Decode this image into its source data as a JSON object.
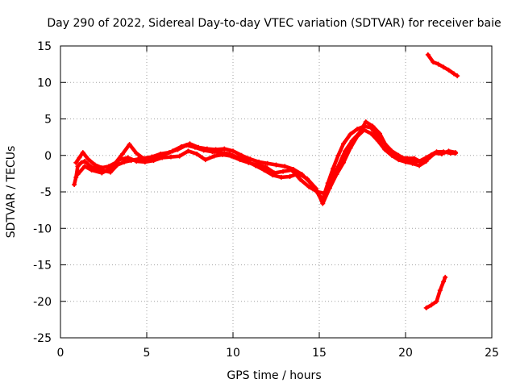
{
  "chart_data": {
    "type": "scatter",
    "title": "Day 290 of 2022, Sidereal Day-to-day VTEC variation (SDTVAR) for receiver baie",
    "xlabel": "GPS time / hours",
    "ylabel": "SDTVAR / TECUs",
    "xlim": [
      0,
      25
    ],
    "ylim": [
      -25,
      15
    ],
    "xticks": [
      0,
      5,
      10,
      15,
      20,
      25
    ],
    "yticks": [
      15,
      10,
      5,
      0,
      -5,
      -10,
      -15,
      -20,
      -25
    ],
    "grid": true,
    "legend": "none",
    "series": [
      {
        "name": "main-trace",
        "color": "#ff0000",
        "points": [
          [
            0.8,
            -4.0
          ],
          [
            0.9,
            -3.0
          ],
          [
            1.0,
            -1.5
          ],
          [
            1.2,
            -1.0
          ],
          [
            1.4,
            -0.8
          ],
          [
            1.6,
            -1.2
          ],
          [
            1.8,
            -1.6
          ],
          [
            2.1,
            -1.9
          ],
          [
            2.5,
            -2.1
          ],
          [
            2.9,
            -2.3
          ],
          [
            3.3,
            -1.3
          ],
          [
            3.7,
            -0.9
          ],
          [
            4.1,
            -0.7
          ],
          [
            4.5,
            -0.5
          ],
          [
            5.0,
            -0.6
          ],
          [
            5.5,
            -0.3
          ],
          [
            6.0,
            0.1
          ],
          [
            6.5,
            0.6
          ],
          [
            7.0,
            1.2
          ],
          [
            7.5,
            1.6
          ],
          [
            8.0,
            1.1
          ],
          [
            8.5,
            0.9
          ],
          [
            9.0,
            0.8
          ],
          [
            9.5,
            0.9
          ],
          [
            10.0,
            0.6
          ],
          [
            10.5,
            0.0
          ],
          [
            11.0,
            -0.5
          ],
          [
            11.5,
            -0.9
          ],
          [
            12.0,
            -1.1
          ],
          [
            12.5,
            -1.3
          ],
          [
            13.0,
            -1.5
          ],
          [
            13.5,
            -1.9
          ],
          [
            14.0,
            -2.6
          ],
          [
            14.5,
            -3.8
          ],
          [
            15.0,
            -5.5
          ],
          [
            15.2,
            -6.0
          ],
          [
            15.5,
            -3.8
          ],
          [
            15.8,
            -1.8
          ],
          [
            16.1,
            0.0
          ],
          [
            16.4,
            1.6
          ],
          [
            16.8,
            2.9
          ],
          [
            17.2,
            3.6
          ],
          [
            17.6,
            4.0
          ],
          [
            18.0,
            3.8
          ],
          [
            18.4,
            2.6
          ],
          [
            18.8,
            1.6
          ],
          [
            19.2,
            0.6
          ],
          [
            19.6,
            0.0
          ],
          [
            20.0,
            -0.5
          ],
          [
            20.4,
            -0.8
          ],
          [
            20.8,
            -0.8
          ],
          [
            21.2,
            -0.3
          ],
          [
            21.5,
            0.1
          ],
          [
            21.8,
            0.5
          ],
          [
            22.2,
            0.5
          ],
          [
            22.6,
            0.3
          ],
          [
            22.9,
            0.3
          ]
        ]
      },
      {
        "name": "variant-trace-a",
        "color": "#ff0000",
        "points": [
          [
            0.9,
            -1.0
          ],
          [
            1.1,
            -0.3
          ],
          [
            1.3,
            0.4
          ],
          [
            1.6,
            -0.5
          ],
          [
            2.0,
            -1.3
          ],
          [
            2.4,
            -1.7
          ],
          [
            2.8,
            -1.5
          ],
          [
            3.2,
            -1.0
          ],
          [
            3.6,
            0.2
          ],
          [
            4.0,
            1.5
          ],
          [
            4.4,
            0.3
          ],
          [
            4.8,
            -0.4
          ],
          [
            5.3,
            -0.2
          ],
          [
            5.8,
            0.2
          ],
          [
            6.3,
            0.4
          ],
          [
            6.8,
            0.8
          ],
          [
            7.3,
            1.4
          ],
          [
            7.8,
            1.1
          ],
          [
            8.3,
            0.7
          ],
          [
            8.8,
            0.5
          ],
          [
            9.3,
            0.4
          ],
          [
            9.8,
            0.2
          ],
          [
            10.3,
            -0.3
          ],
          [
            10.8,
            -0.8
          ],
          [
            11.3,
            -1.4
          ],
          [
            11.8,
            -2.0
          ],
          [
            12.3,
            -2.7
          ],
          [
            12.8,
            -3.0
          ],
          [
            13.3,
            -2.9
          ],
          [
            13.8,
            -2.5
          ],
          [
            14.3,
            -3.2
          ],
          [
            14.8,
            -4.5
          ],
          [
            15.2,
            -6.6
          ],
          [
            15.6,
            -4.5
          ],
          [
            16.0,
            -2.6
          ],
          [
            16.4,
            -1.0
          ],
          [
            16.8,
            1.0
          ],
          [
            17.2,
            2.6
          ],
          [
            17.6,
            3.5
          ],
          [
            18.0,
            3.0
          ],
          [
            18.4,
            2.0
          ],
          [
            18.8,
            0.8
          ],
          [
            19.2,
            0.0
          ],
          [
            19.6,
            -0.6
          ],
          [
            20.0,
            -0.9
          ],
          [
            20.4,
            -1.1
          ],
          [
            20.8,
            -1.4
          ],
          [
            21.2,
            -0.8
          ]
        ]
      },
      {
        "name": "variant-trace-b",
        "color": "#ff0000",
        "points": [
          [
            1.0,
            -2.6
          ],
          [
            1.4,
            -1.5
          ],
          [
            1.8,
            -2.0
          ],
          [
            2.4,
            -2.4
          ],
          [
            2.9,
            -1.8
          ],
          [
            3.4,
            -0.6
          ],
          [
            3.9,
            -0.3
          ],
          [
            4.4,
            -0.8
          ],
          [
            4.9,
            -0.9
          ],
          [
            5.4,
            -0.7
          ],
          [
            5.9,
            -0.3
          ],
          [
            6.4,
            -0.2
          ],
          [
            6.9,
            -0.1
          ],
          [
            7.4,
            0.6
          ],
          [
            7.9,
            0.2
          ],
          [
            8.4,
            -0.6
          ],
          [
            8.9,
            -0.1
          ],
          [
            9.4,
            0.1
          ],
          [
            9.9,
            -0.1
          ],
          [
            10.4,
            -0.6
          ],
          [
            10.9,
            -1.0
          ],
          [
            11.4,
            -1.3
          ],
          [
            11.9,
            -1.6
          ],
          [
            12.4,
            -2.4
          ],
          [
            12.9,
            -2.2
          ],
          [
            13.4,
            -2.0
          ],
          [
            13.9,
            -3.3
          ],
          [
            14.4,
            -4.3
          ],
          [
            14.9,
            -5.0
          ],
          [
            15.3,
            -5.2
          ],
          [
            15.7,
            -3.2
          ],
          [
            16.1,
            -1.5
          ],
          [
            16.5,
            0.6
          ],
          [
            16.9,
            2.0
          ],
          [
            17.3,
            3.0
          ],
          [
            17.7,
            4.6
          ],
          [
            18.1,
            4.0
          ],
          [
            18.5,
            3.0
          ],
          [
            18.9,
            1.2
          ],
          [
            19.3,
            0.3
          ],
          [
            19.7,
            -0.3
          ],
          [
            20.1,
            -0.4
          ],
          [
            20.5,
            -0.4
          ],
          [
            20.9,
            -0.9
          ],
          [
            21.3,
            -0.5
          ],
          [
            21.7,
            0.3
          ],
          [
            22.1,
            0.2
          ],
          [
            22.5,
            0.6
          ],
          [
            22.9,
            0.4
          ]
        ]
      },
      {
        "name": "segment-upper-right",
        "color": "#ff0000",
        "points": [
          [
            21.3,
            13.8
          ],
          [
            21.6,
            12.8
          ],
          [
            21.9,
            12.5
          ],
          [
            22.2,
            12.1
          ],
          [
            22.5,
            11.7
          ],
          [
            22.8,
            11.2
          ],
          [
            23.0,
            10.9
          ]
        ]
      },
      {
        "name": "segment-lower-right",
        "color": "#ff0000",
        "points": [
          [
            21.2,
            -20.9
          ],
          [
            21.5,
            -20.5
          ],
          [
            21.8,
            -20.0
          ],
          [
            22.0,
            -18.5
          ],
          [
            22.2,
            -17.3
          ],
          [
            22.3,
            -16.7
          ]
        ]
      }
    ]
  }
}
